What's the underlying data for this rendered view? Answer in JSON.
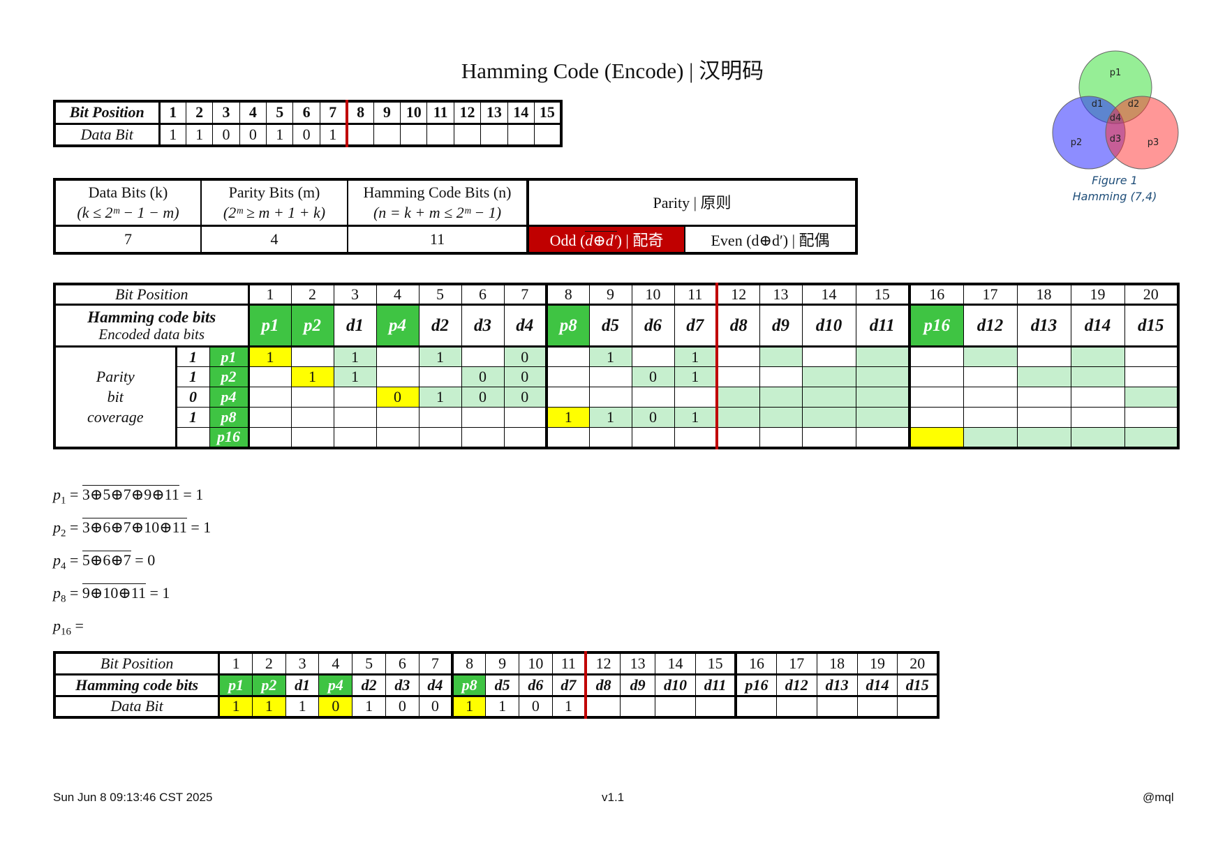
{
  "title": "Hamming Code (Encode) | 汉明码",
  "table1": {
    "row1_label": "Bit Position",
    "row2_label": "Data Bit",
    "positions": [
      "1",
      "2",
      "3",
      "4",
      "5",
      "6",
      "7",
      "8",
      "9",
      "10",
      "11",
      "12",
      "13",
      "14",
      "15"
    ],
    "data_bits": [
      "1",
      "1",
      "0",
      "0",
      "1",
      "0",
      "1",
      "",
      "",
      "",
      "",
      "",
      "",
      "",
      ""
    ]
  },
  "table2": {
    "h_k": "Data Bits (k)",
    "h_k_formula": "(k ≤ 2ᵐ − 1 − m)",
    "h_m": "Parity Bits (m)",
    "h_m_formula": "(2ᵐ ≥ m + 1 + k)",
    "h_n": "Hamming Code Bits (n)",
    "h_n_formula": "(n = k + m ≤ 2ᵐ − 1)",
    "h_parity": "Parity | 原则",
    "k": "7",
    "m": "4",
    "n": "11",
    "odd_prefix": "Odd (",
    "odd_expr": "d⊕d′",
    "odd_suffix": ") | 配奇",
    "even": "Even (d⊕d′) | 配偶",
    "accent_color": "#c00000"
  },
  "table3": {
    "row1_label": "Bit Position",
    "row2_label_1": "Hamming code bits",
    "row2_label_2": "Encoded data bits",
    "side_label": [
      "Parity",
      "bit",
      "coverage"
    ],
    "positions": [
      "1",
      "2",
      "3",
      "4",
      "5",
      "6",
      "7",
      "8",
      "9",
      "10",
      "11",
      "12",
      "13",
      "14",
      "15",
      "16",
      "17",
      "18",
      "19",
      "20"
    ],
    "names": [
      "p1",
      "p2",
      "d1",
      "p4",
      "d2",
      "d3",
      "d4",
      "p8",
      "d5",
      "d6",
      "d7",
      "d8",
      "d9",
      "d10",
      "d11",
      "p16",
      "d12",
      "d13",
      "d14",
      "d15"
    ],
    "parity_rows": [
      {
        "value": "1",
        "name": "p1"
      },
      {
        "value": "1",
        "name": "p2"
      },
      {
        "value": "0",
        "name": "p4"
      },
      {
        "value": "1",
        "name": "p8"
      },
      {
        "value": "",
        "name": "p16"
      }
    ],
    "cells": [
      [
        "1",
        "",
        "1",
        "",
        "1",
        "",
        "0",
        "",
        "1",
        "",
        "1",
        "",
        "",
        "",
        "",
        "",
        "",
        "",
        "",
        ""
      ],
      [
        "",
        "1",
        "1",
        "",
        "",
        "0",
        "0",
        "",
        "",
        "0",
        "1",
        "",
        "",
        "",
        "",
        "",
        "",
        "",
        "",
        ""
      ],
      [
        "",
        "",
        "",
        "0",
        "1",
        "0",
        "0",
        "",
        "",
        "",
        "",
        "",
        "",
        "",
        "",
        "",
        "",
        "",
        "",
        ""
      ],
      [
        "",
        "",
        "",
        "",
        "",
        "",
        "",
        "1",
        "1",
        "0",
        "1",
        "",
        "",
        "",
        "",
        "",
        "",
        "",
        "",
        ""
      ],
      [
        "",
        "",
        "",
        "",
        "",
        "",
        "",
        "",
        "",
        "",
        "",
        "",
        "",
        "",
        "",
        "",
        "",
        "",
        "",
        ""
      ]
    ],
    "green_color": "#3fc443",
    "light_green_color": "#c6efce",
    "yellow_color": "#ffff00"
  },
  "formulas": [
    {
      "sym": "p",
      "sub": "1",
      "eq": " = ",
      "expr": "3⊕5⊕7⊕9⊕11",
      "result": " = 1"
    },
    {
      "sym": "p",
      "sub": "2",
      "eq": " = ",
      "expr": "3⊕6⊕7⊕10⊕11",
      "result": " = 1"
    },
    {
      "sym": "p",
      "sub": "4",
      "eq": " = ",
      "expr": "5⊕6⊕7",
      "result": " = 0"
    },
    {
      "sym": "p",
      "sub": "8",
      "eq": " = ",
      "expr": "9⊕10⊕11",
      "result": " = 1"
    },
    {
      "sym": "p",
      "sub": "16",
      "eq": " = ",
      "expr": "",
      "result": ""
    }
  ],
  "table4": {
    "row1_label": "Bit Position",
    "row2_label": "Hamming code bits",
    "row3_label": "Data Bit",
    "positions": [
      "1",
      "2",
      "3",
      "4",
      "5",
      "6",
      "7",
      "8",
      "9",
      "10",
      "11",
      "12",
      "13",
      "14",
      "15",
      "16",
      "17",
      "18",
      "19",
      "20"
    ],
    "names": [
      "p1",
      "p2",
      "d1",
      "p4",
      "d2",
      "d3",
      "d4",
      "p8",
      "d5",
      "d6",
      "d7",
      "d8",
      "d9",
      "d10",
      "d11",
      "p16",
      "d12",
      "d13",
      "d14",
      "d15"
    ],
    "bits": [
      "1",
      "1",
      "1",
      "0",
      "1",
      "0",
      "0",
      "1",
      "1",
      "0",
      "1",
      "",
      "",
      "",
      "",
      "",
      "",
      "",
      "",
      ""
    ]
  },
  "venn": {
    "labels": [
      "p1",
      "p2",
      "p3",
      "d1",
      "d2",
      "d3",
      "d4"
    ],
    "caption_1": "Figure 1",
    "caption_2": "Hamming (7,4)"
  },
  "footer": {
    "date": "Sun Jun  8 09:13:46 CST 2025",
    "version": "v1.1",
    "author": "@mql"
  }
}
